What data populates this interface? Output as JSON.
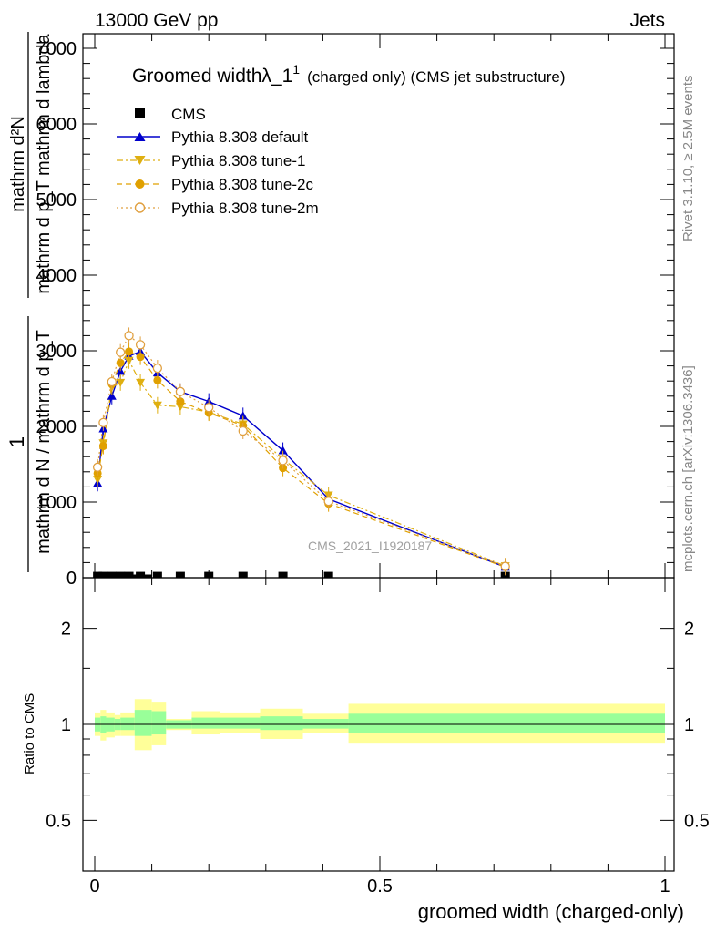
{
  "header": {
    "left": "13000 GeV pp",
    "right": "Jets"
  },
  "side_text": {
    "rivet": "Rivet 3.1.10, ≥ 2.5M events",
    "mcplots": "mcplots.cern.ch [arXiv:1306.3436]"
  },
  "watermark": "CMS_2021_I1920187",
  "colors": {
    "cms": "#000000",
    "default": "#0000cc",
    "tune1": "#dfaf10",
    "tune2c": "#e0a000",
    "tune2m": "#e0a040",
    "band_inner": "#99ff99",
    "band_outer": "#ffff99"
  },
  "chart_data": [
    {
      "type": "line",
      "title_main": "Groomed width",
      "title_lambda": "λ_1",
      "title_sup": "1",
      "title_tail": "(charged only) (CMS jet substructure)",
      "ylabel_numer": "1",
      "ylabel_denom": "mathrm d N / mathrm d p_T",
      "ylabel_right_numer": "mathrm d²N",
      "ylabel_right_denom": "mathrm d p_T mathrm d lambda",
      "ylim": [
        0,
        7200
      ],
      "yticks": [
        0,
        1000,
        2000,
        3000,
        4000,
        5000,
        6000,
        7000
      ],
      "ytick_labels": [
        "0",
        "1000",
        "2000",
        "3000",
        "4000",
        "5000",
        "6000",
        "7000"
      ],
      "xlim": [
        -0.02,
        1.0
      ],
      "legend_position": "top-left",
      "legend": [
        "CMS",
        "Pythia 8.308 default",
        "Pythia 8.308 tune-1",
        "Pythia 8.308 tune-2c",
        "Pythia 8.308 tune-2m"
      ],
      "x": [
        0.005,
        0.015,
        0.03,
        0.045,
        0.06,
        0.08,
        0.11,
        0.15,
        0.2,
        0.26,
        0.33,
        0.41,
        0.72
      ],
      "series": [
        {
          "name": "CMS",
          "marker": "square",
          "values": [
            5,
            5,
            5,
            5,
            5,
            5,
            5,
            5,
            5,
            5,
            5,
            5,
            5
          ]
        },
        {
          "name": "Pythia 8.308 default",
          "marker": "triangle-up",
          "values": [
            1250,
            1970,
            2400,
            2730,
            2930,
            2990,
            2710,
            2460,
            2330,
            2140,
            1680,
            1040,
            140
          ]
        },
        {
          "name": "Pythia 8.308 tune-1",
          "marker": "triangle-down",
          "values": [
            1300,
            1780,
            2520,
            2580,
            2870,
            2580,
            2280,
            2260,
            2190,
            2030,
            1570,
            1090,
            155
          ]
        },
        {
          "name": "Pythia 8.308 tune-2c",
          "marker": "circle",
          "values": [
            1380,
            1740,
            2560,
            2840,
            2990,
            2920,
            2610,
            2330,
            2180,
            2010,
            1450,
            980,
            140
          ]
        },
        {
          "name": "Pythia 8.308 tune-2m",
          "marker": "open-circle",
          "values": [
            1460,
            2050,
            2590,
            2980,
            3200,
            3080,
            2770,
            2460,
            2250,
            1940,
            1550,
            1010,
            150
          ]
        }
      ]
    },
    {
      "type": "area",
      "ylabel": "Ratio to CMS",
      "xlabel": "groomed width (charged-only)",
      "yscale": "log",
      "ylim": [
        0.4,
        2.5
      ],
      "yticks": [
        0.5,
        1,
        2
      ],
      "ytick_labels": [
        "0.5",
        "1",
        "2"
      ],
      "xlim": [
        -0.02,
        1.0
      ],
      "xticks": [
        0,
        0.5,
        1
      ],
      "xtick_labels": [
        "0",
        "0.5",
        "1"
      ],
      "bands": [
        {
          "x": [
            0.0,
            0.01
          ],
          "inner": [
            0.95,
            1.05
          ],
          "outer": [
            0.92,
            1.09
          ]
        },
        {
          "x": [
            0.01,
            0.02
          ],
          "inner": [
            0.94,
            1.06
          ],
          "outer": [
            0.89,
            1.11
          ]
        },
        {
          "x": [
            0.02,
            0.035
          ],
          "inner": [
            0.95,
            1.05
          ],
          "outer": [
            0.91,
            1.09
          ]
        },
        {
          "x": [
            0.035,
            0.045
          ],
          "inner": [
            0.96,
            1.04
          ],
          "outer": [
            0.92,
            1.07
          ]
        },
        {
          "x": [
            0.045,
            0.07
          ],
          "inner": [
            0.96,
            1.05
          ],
          "outer": [
            0.92,
            1.09
          ]
        },
        {
          "x": [
            0.07,
            0.1
          ],
          "inner": [
            0.92,
            1.11
          ],
          "outer": [
            0.83,
            1.2
          ]
        },
        {
          "x": [
            0.1,
            0.125
          ],
          "inner": [
            0.93,
            1.1
          ],
          "outer": [
            0.86,
            1.17
          ]
        },
        {
          "x": [
            0.125,
            0.17
          ],
          "inner": [
            0.97,
            1.03
          ],
          "outer": [
            0.96,
            1.04
          ]
        },
        {
          "x": [
            0.17,
            0.22
          ],
          "inner": [
            0.97,
            1.05
          ],
          "outer": [
            0.93,
            1.1
          ]
        },
        {
          "x": [
            0.22,
            0.29
          ],
          "inner": [
            0.97,
            1.05
          ],
          "outer": [
            0.94,
            1.09
          ]
        },
        {
          "x": [
            0.29,
            0.365
          ],
          "inner": [
            0.96,
            1.06
          ],
          "outer": [
            0.9,
            1.12
          ]
        },
        {
          "x": [
            0.365,
            0.445
          ],
          "inner": [
            0.97,
            1.04
          ],
          "outer": [
            0.94,
            1.08
          ]
        },
        {
          "x": [
            0.445,
            1.0
          ],
          "inner": [
            0.94,
            1.08
          ],
          "outer": [
            0.87,
            1.16
          ]
        }
      ]
    }
  ]
}
